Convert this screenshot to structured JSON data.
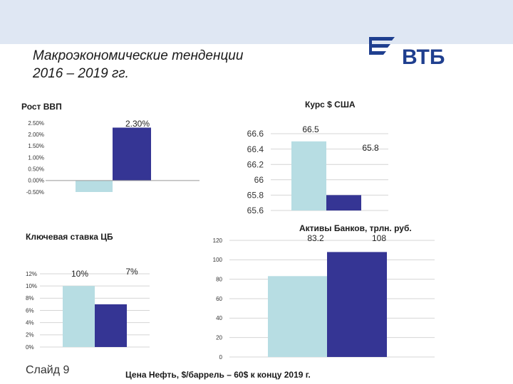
{
  "header": {
    "title_line1": "Макроэкономические тенденции",
    "title_line2": "2016 – 2019 гг.",
    "logo_text": "ВТБ"
  },
  "footer": {
    "slide_label": "Слайд 9",
    "oil_note": "Цена Нефть, $/баррель – 60$ к концу 2019 г."
  },
  "colors": {
    "light": "#b7dde3",
    "dark": "#353594",
    "axis": "#999999",
    "grid": "#d4d4d4"
  },
  "chart_data": [
    {
      "id": "gdp",
      "type": "bar",
      "title": "Рост ВВП",
      "ticks": [
        "2.50%",
        "2.00%",
        "1.50%",
        "1.00%",
        "0.50%",
        "0.00%",
        "-0.50%"
      ],
      "ylim": [
        -0.5,
        2.5
      ],
      "grid": false,
      "series": [
        {
          "values": [
            -0.5
          ],
          "color": "#b7dde3",
          "label": ""
        },
        {
          "values": [
            2.3
          ],
          "color": "#353594",
          "label": "2.30%"
        }
      ]
    },
    {
      "id": "usd",
      "type": "bar",
      "title": "Курс $ США",
      "ticks": [
        "66.6",
        "66.4",
        "66.2",
        "66",
        "65.8",
        "65.6"
      ],
      "ylim": [
        65.6,
        66.6
      ],
      "grid": true,
      "series": [
        {
          "values": [
            66.5
          ],
          "color": "#b7dde3",
          "label": "66.5"
        },
        {
          "values": [
            65.8
          ],
          "color": "#353594",
          "label": "65.8"
        }
      ]
    },
    {
      "id": "rate",
      "type": "bar",
      "title": "Ключевая ставка ЦБ",
      "ticks": [
        "12%",
        "10%",
        "8%",
        "6%",
        "4%",
        "2%",
        "0%"
      ],
      "ylim": [
        0,
        12
      ],
      "grid": true,
      "series": [
        {
          "values": [
            10
          ],
          "color": "#b7dde3",
          "label": "10%"
        },
        {
          "values": [
            7
          ],
          "color": "#353594",
          "label": "7%"
        }
      ]
    },
    {
      "id": "assets",
      "type": "bar",
      "title": "Активы Банков, трлн. руб.",
      "ticks": [
        "120",
        "100",
        "80",
        "60",
        "40",
        "20",
        "0"
      ],
      "ylim": [
        0,
        120
      ],
      "grid": true,
      "series": [
        {
          "values": [
            83.2
          ],
          "color": "#b7dde3",
          "label": "83.2"
        },
        {
          "values": [
            108
          ],
          "color": "#353594",
          "label": "108"
        }
      ]
    }
  ]
}
